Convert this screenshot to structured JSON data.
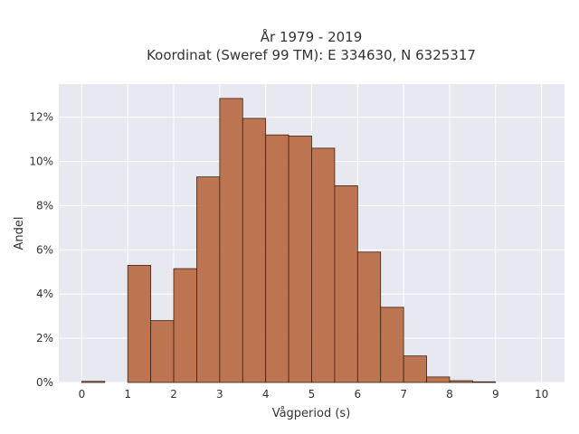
{
  "chart_data": {
    "type": "bar",
    "title_lines": [
      "År 1979 - 2019",
      "Koordinat (Sweref 99 TM): E 334630, N 6325317"
    ],
    "xlabel": "Vågperiod (s)",
    "ylabel": "Andel",
    "bin_width": 0.5,
    "bins": [
      {
        "start": 0.0,
        "value": 0.05
      },
      {
        "start": 0.5,
        "value": 0.0
      },
      {
        "start": 1.0,
        "value": 5.3
      },
      {
        "start": 1.5,
        "value": 2.8
      },
      {
        "start": 2.0,
        "value": 5.15
      },
      {
        "start": 2.5,
        "value": 9.3
      },
      {
        "start": 3.0,
        "value": 12.85
      },
      {
        "start": 3.5,
        "value": 11.95
      },
      {
        "start": 4.0,
        "value": 11.2
      },
      {
        "start": 4.5,
        "value": 11.15
      },
      {
        "start": 5.0,
        "value": 10.6
      },
      {
        "start": 5.5,
        "value": 8.9
      },
      {
        "start": 6.0,
        "value": 5.9
      },
      {
        "start": 6.5,
        "value": 3.4
      },
      {
        "start": 7.0,
        "value": 1.2
      },
      {
        "start": 7.5,
        "value": 0.25
      },
      {
        "start": 8.0,
        "value": 0.08
      },
      {
        "start": 8.5,
        "value": 0.03
      },
      {
        "start": 9.0,
        "value": 0.0
      },
      {
        "start": 9.5,
        "value": 0.0
      }
    ],
    "xlim": [
      -0.5,
      10.5
    ],
    "ylim": [
      0,
      13.5
    ],
    "xticks": [
      0,
      1,
      2,
      3,
      4,
      5,
      6,
      7,
      8,
      9,
      10
    ],
    "xtick_labels": [
      "0",
      "1",
      "2",
      "3",
      "4",
      "5",
      "6",
      "7",
      "8",
      "9",
      "10"
    ],
    "yticks": [
      0,
      2,
      4,
      6,
      8,
      10,
      12
    ],
    "ytick_labels": [
      "0%",
      "2%",
      "4%",
      "6%",
      "8%",
      "10%",
      "12%"
    ],
    "grid": true,
    "colors": {
      "bar_fill": "#b8673e",
      "bar_edge": "#3a2416",
      "plot_bg": "#e8e8f0",
      "grid": "#ffffff"
    }
  }
}
